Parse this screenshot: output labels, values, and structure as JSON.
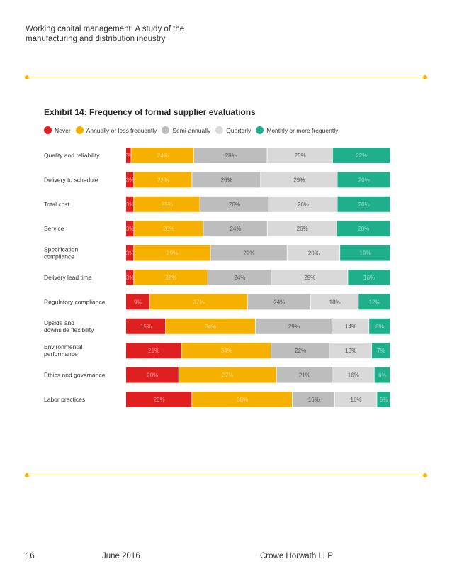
{
  "header": {
    "title_line1": "Working capital management: A study of the",
    "title_line2": "manufacturing and distribution industry"
  },
  "colors": {
    "never": "#e02020",
    "annually": "#f5b000",
    "semi_annually": "#bdbdbd",
    "quarterly": "#d9d9d9",
    "monthly": "#1fb08b",
    "rule": "#f4b400"
  },
  "chart_data": {
    "type": "bar",
    "orientation": "horizontal-stacked-100",
    "title": "Exhibit 14: Frequency of formal supplier evaluations",
    "legend": [
      "Never",
      "Annually or less frequently",
      "Semi-annually",
      "Quarterly",
      "Monthly or more frequently"
    ],
    "categories": [
      [
        "Quality and reliability"
      ],
      [
        "Delivery to schedule"
      ],
      [
        "Total cost"
      ],
      [
        "Service"
      ],
      [
        "Specification",
        "compliance"
      ],
      [
        "Delivery lead time"
      ],
      [
        "Regulatory compliance"
      ],
      [
        "Upside and",
        "downside flexibility"
      ],
      [
        "Environmental",
        "performance"
      ],
      [
        "Ethics and governance"
      ],
      [
        "Labor practices"
      ]
    ],
    "series": [
      {
        "name": "Never",
        "color_key": "never",
        "values": [
          2,
          3,
          3,
          3,
          3,
          3,
          9,
          15,
          21,
          20,
          25
        ]
      },
      {
        "name": "Annually or less frequently",
        "color_key": "annually",
        "values": [
          24,
          22,
          25,
          26,
          29,
          28,
          37,
          34,
          34,
          37,
          38
        ]
      },
      {
        "name": "Semi-annually",
        "color_key": "semi_annually",
        "values": [
          28,
          26,
          26,
          24,
          29,
          24,
          24,
          29,
          22,
          21,
          16
        ]
      },
      {
        "name": "Quarterly",
        "color_key": "quarterly",
        "values": [
          25,
          29,
          26,
          26,
          20,
          29,
          18,
          14,
          16,
          16,
          16
        ]
      },
      {
        "name": "Monthly or more frequently",
        "color_key": "monthly",
        "values": [
          22,
          20,
          20,
          20,
          19,
          16,
          12,
          8,
          7,
          6,
          5
        ]
      }
    ],
    "value_suffix": "%",
    "xlim": [
      0,
      100
    ]
  },
  "footer": {
    "page_number": "16",
    "date": "June 2016",
    "company": "Crowe Horwath LLP"
  }
}
